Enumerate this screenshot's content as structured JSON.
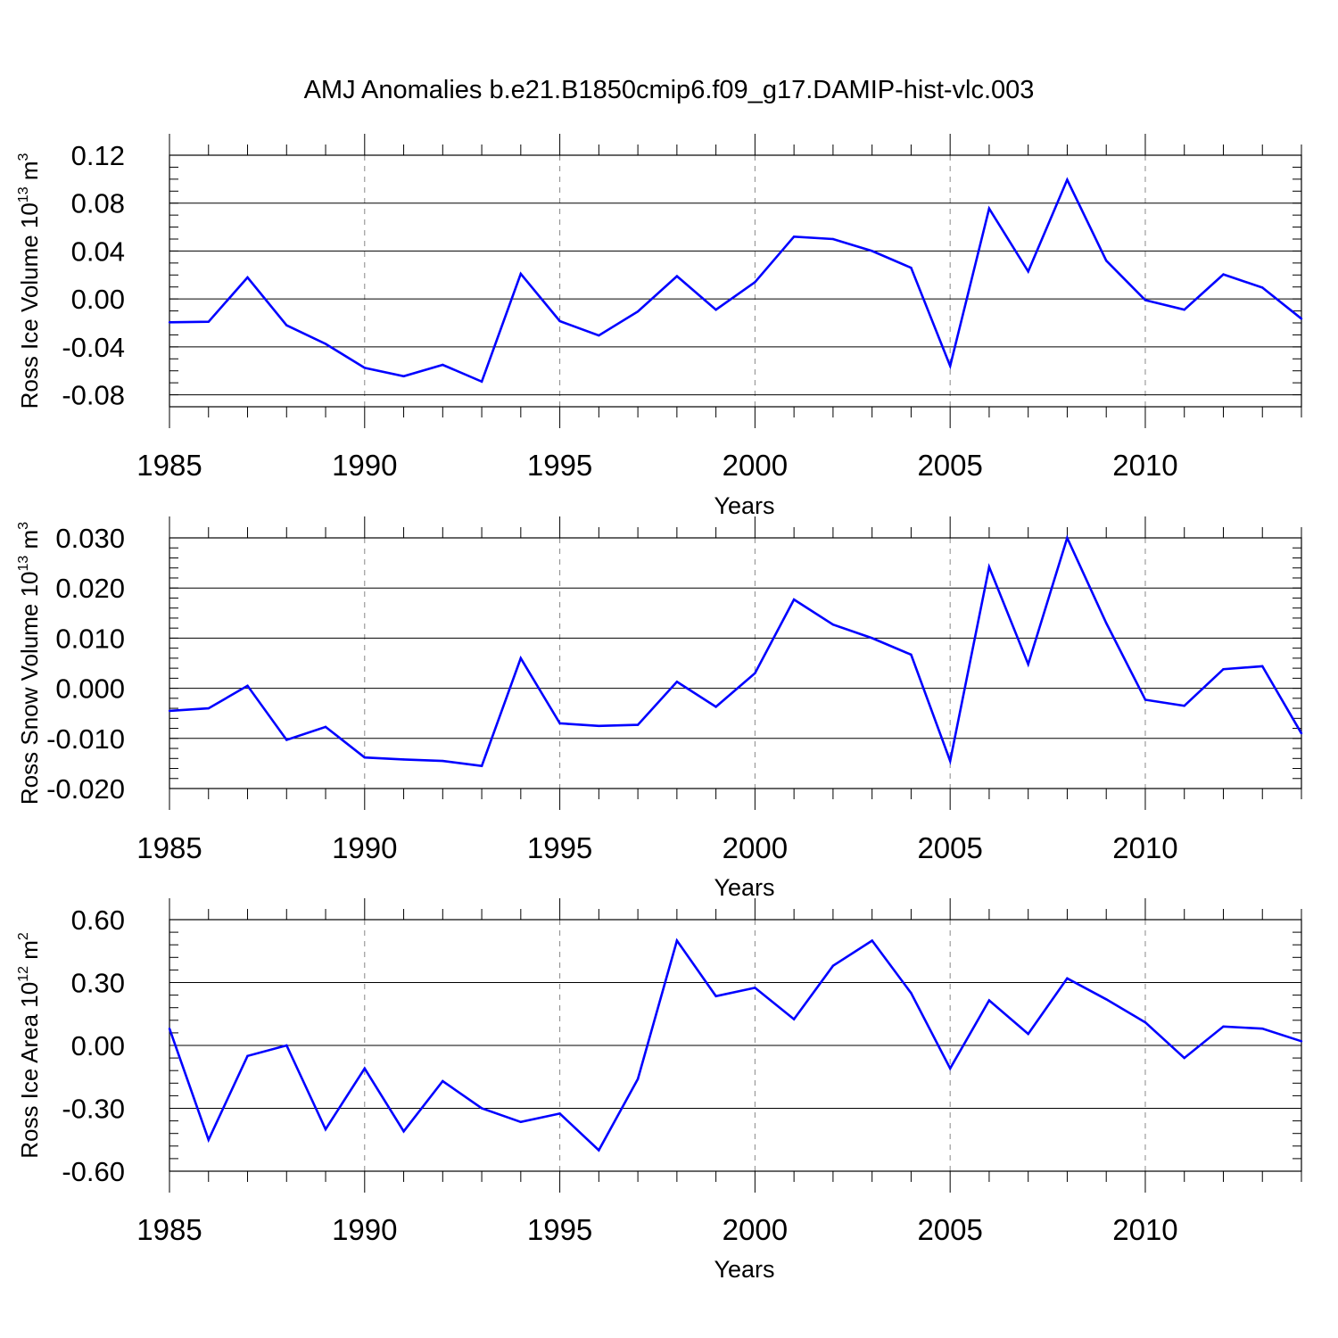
{
  "chart_data": {
    "title": "AMJ Anomalies b.e21.B1850cmip6.f09_g17.DAMIP-hist-vlc.003",
    "type": "line",
    "line_color": "#0000ff",
    "panels": [
      {
        "type": "line",
        "ylabel_prefix": "Ross Ice Volume 10",
        "ylabel_sup": "13",
        "ylabel_unit": " m",
        "ylabel_unit_sup": "3",
        "xlabel": "Years",
        "ylim": [
          -0.09,
          0.12
        ],
        "yticks": [
          -0.08,
          -0.04,
          0.0,
          0.04,
          0.08,
          0.12
        ],
        "ytick_labels": [
          "-0.08",
          "-0.04",
          "0.00",
          "0.04",
          "0.08",
          "0.12"
        ],
        "yminor_step": 0.01,
        "xlim": [
          1985,
          2014
        ],
        "xticks": [
          1985,
          1990,
          1995,
          2000,
          2005,
          2010
        ],
        "xtick_labels": [
          "1985",
          "1990",
          "1995",
          "2000",
          "2005",
          "2010"
        ],
        "x": [
          1985,
          1986,
          1987,
          1988,
          1989,
          1990,
          1991,
          1992,
          1993,
          1994,
          1995,
          1996,
          1997,
          1998,
          1999,
          2000,
          2001,
          2002,
          2003,
          2004,
          2005,
          2006,
          2007,
          2008,
          2009,
          2010,
          2011,
          2012,
          2013,
          2014
        ],
        "values": [
          -0.0195,
          -0.019,
          0.018,
          -0.022,
          -0.0375,
          -0.0575,
          -0.0645,
          -0.055,
          -0.069,
          0.021,
          -0.0185,
          -0.0305,
          -0.0105,
          0.019,
          -0.009,
          0.014,
          0.052,
          0.05,
          0.04,
          0.026,
          -0.056,
          0.0755,
          0.023,
          0.0995,
          0.032,
          -0.001,
          -0.009,
          0.0205,
          0.0095,
          -0.0165
        ]
      },
      {
        "type": "line",
        "ylabel_prefix": "Ross Snow Volume 10",
        "ylabel_sup": "13",
        "ylabel_unit": " m",
        "ylabel_unit_sup": "3",
        "xlabel": "Years",
        "ylim": [
          -0.02,
          0.03
        ],
        "yticks": [
          -0.02,
          -0.01,
          0.0,
          0.01,
          0.02,
          0.03
        ],
        "ytick_labels": [
          "-0.020",
          "-0.010",
          "0.000",
          "0.010",
          "0.020",
          "0.030"
        ],
        "yminor_step": 0.002,
        "xlim": [
          1985,
          2014
        ],
        "xticks": [
          1985,
          1990,
          1995,
          2000,
          2005,
          2010
        ],
        "xtick_labels": [
          "1985",
          "1990",
          "1995",
          "2000",
          "2005",
          "2010"
        ],
        "x": [
          1985,
          1986,
          1987,
          1988,
          1989,
          1990,
          1991,
          1992,
          1993,
          1994,
          1995,
          1996,
          1997,
          1998,
          1999,
          2000,
          2001,
          2002,
          2003,
          2004,
          2005,
          2006,
          2007,
          2008,
          2009,
          2010,
          2011,
          2012,
          2013,
          2014
        ],
        "values": [
          -0.0045,
          -0.004,
          0.0005,
          -0.0103,
          -0.0077,
          -0.0138,
          -0.0142,
          -0.0145,
          -0.0155,
          0.006,
          -0.007,
          -0.0075,
          -0.0073,
          0.0013,
          -0.0037,
          0.003,
          0.0177,
          0.0127,
          0.01,
          0.0067,
          -0.0145,
          0.0242,
          0.0048,
          0.03,
          0.013,
          -0.0023,
          -0.0035,
          0.0038,
          0.0044,
          -0.009
        ]
      },
      {
        "type": "line",
        "ylabel_prefix": "Ross Ice Area 10",
        "ylabel_sup": "12",
        "ylabel_unit": " m",
        "ylabel_unit_sup": "2",
        "xlabel": "Years",
        "ylim": [
          -0.6,
          0.6
        ],
        "yticks": [
          -0.6,
          -0.3,
          0.0,
          0.3,
          0.6
        ],
        "ytick_labels": [
          "-0.60",
          "-0.30",
          "0.00",
          "0.30",
          "0.60"
        ],
        "yminor_step": 0.06,
        "xlim": [
          1985,
          2014
        ],
        "xticks": [
          1985,
          1990,
          1995,
          2000,
          2005,
          2010
        ],
        "xtick_labels": [
          "1985",
          "1990",
          "1995",
          "2000",
          "2005",
          "2010"
        ],
        "x": [
          1985,
          1986,
          1987,
          1988,
          1989,
          1990,
          1991,
          1992,
          1993,
          1994,
          1995,
          1996,
          1997,
          1998,
          1999,
          2000,
          2001,
          2002,
          2003,
          2004,
          2005,
          2006,
          2007,
          2008,
          2009,
          2010,
          2011,
          2012,
          2013,
          2014
        ],
        "values": [
          0.08,
          -0.45,
          -0.05,
          0.0,
          -0.4,
          -0.11,
          -0.41,
          -0.17,
          -0.3,
          -0.365,
          -0.325,
          -0.5,
          -0.16,
          0.5,
          0.235,
          0.275,
          0.125,
          0.38,
          0.5,
          0.25,
          -0.11,
          0.215,
          0.055,
          0.32,
          0.22,
          0.11,
          -0.06,
          0.09,
          0.08,
          0.02
        ]
      }
    ]
  }
}
